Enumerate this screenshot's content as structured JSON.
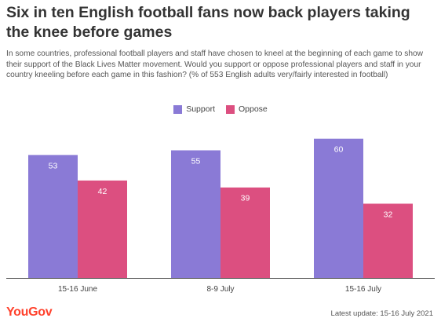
{
  "header": {
    "title": "Six in ten English football fans now back players taking the knee before games",
    "subtitle": "In some countries, professional football players and staff have chosen to kneel at the beginning of each game to show their support of the Black Lives Matter movement. Would you support or oppose professional players and staff in your country kneeling before each game in this fashion? (% of 553 English adults very/fairly interested in football)"
  },
  "chart_data": {
    "type": "bar",
    "categories": [
      "15-16 June",
      "8-9 July",
      "15-16 July"
    ],
    "series": [
      {
        "name": "Support",
        "values": [
          53,
          55,
          60
        ],
        "color": "#8a7ad6"
      },
      {
        "name": "Oppose",
        "values": [
          42,
          39,
          32
        ],
        "color": "#dc4f80"
      }
    ],
    "ylim": [
      0,
      67
    ],
    "grid": false,
    "legend": "top-center"
  },
  "footer": {
    "logo": "YouGov",
    "logo_color": "#ff412c",
    "update": "Latest update: 15-16 July 2021"
  }
}
